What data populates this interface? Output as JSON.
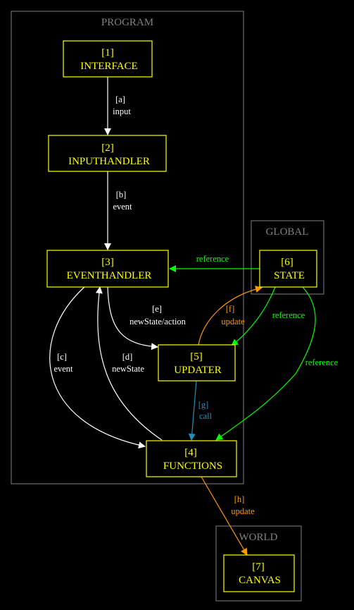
{
  "colors": {
    "background": "#000000",
    "cluster": "#808080",
    "node": "#ffff00",
    "edge_white": "#ffffff",
    "edge_green": "#00ff00",
    "edge_orange": "#ff9900",
    "edge_blue": "#1f8fbf"
  },
  "clusters": [
    {
      "id": "program",
      "label": "PROGRAM"
    },
    {
      "id": "global",
      "label": "GLOBAL"
    },
    {
      "id": "world",
      "label": "WORLD"
    }
  ],
  "nodes": [
    {
      "id": "n1",
      "num": "[1]",
      "label": "INTERFACE"
    },
    {
      "id": "n2",
      "num": "[2]",
      "label": "INPUTHANDLER"
    },
    {
      "id": "n3",
      "num": "[3]",
      "label": "EVENTHANDLER"
    },
    {
      "id": "n4",
      "num": "[4]",
      "label": "FUNCTIONS"
    },
    {
      "id": "n5",
      "num": "[5]",
      "label": "UPDATER"
    },
    {
      "id": "n6",
      "num": "[6]",
      "label": "STATE"
    },
    {
      "id": "n7",
      "num": "[7]",
      "label": "CANVAS"
    }
  ],
  "edges": [
    {
      "id": "a",
      "from": "n1",
      "to": "n2",
      "tag": "[a]",
      "label": "input",
      "color": "#ffffff"
    },
    {
      "id": "b",
      "from": "n2",
      "to": "n3",
      "tag": "[b]",
      "label": "event",
      "color": "#ffffff"
    },
    {
      "id": "c",
      "from": "n3",
      "to": "n4",
      "tag": "[c]",
      "label": "event",
      "color": "#ffffff"
    },
    {
      "id": "d",
      "from": "n4",
      "to": "n3",
      "tag": "[d]",
      "label": "newState",
      "color": "#ffffff"
    },
    {
      "id": "e",
      "from": "n3",
      "to": "n5",
      "tag": "[e]",
      "label": "newState/action",
      "color": "#ffffff"
    },
    {
      "id": "f",
      "from": "n5",
      "to": "n6",
      "tag": "[f]",
      "label": "update",
      "color": "#ff9900"
    },
    {
      "id": "g",
      "from": "n5",
      "to": "n4",
      "tag": "[g]",
      "label": "call",
      "color": "#1f8fbf"
    },
    {
      "id": "h",
      "from": "n4",
      "to": "n7",
      "tag": "[h]",
      "label": "update",
      "color": "#ff9900"
    },
    {
      "id": "r1",
      "from": "n6",
      "to": "n3",
      "label": "reference",
      "color": "#00ff00"
    },
    {
      "id": "r2",
      "from": "n6",
      "to": "n5",
      "label": "reference",
      "color": "#00ff00"
    },
    {
      "id": "r3",
      "from": "n6",
      "to": "n4",
      "label": "reference",
      "color": "#00ff00"
    }
  ]
}
